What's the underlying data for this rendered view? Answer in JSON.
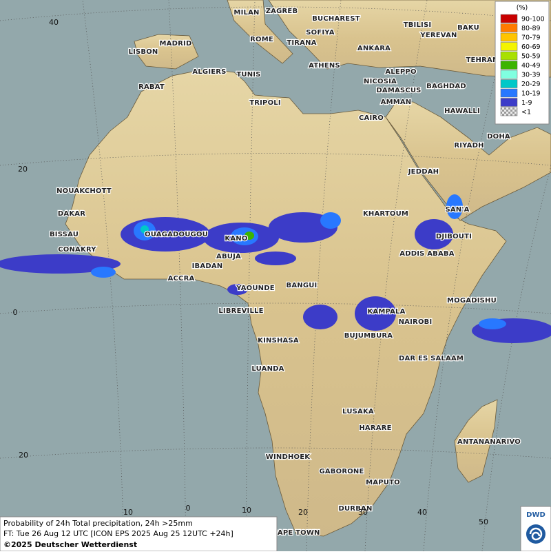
{
  "map": {
    "cities": [
      "MILAN",
      "ZAGREB",
      "BUCHAREST",
      "SOFIYA",
      "TBILISI",
      "BAKU",
      "YEREVAN",
      "MADRID",
      "ROME",
      "TIRANA",
      "ANKARA",
      "LISBON",
      "ATHENS",
      "TEHRAN",
      "ALGIERS",
      "TUNIS",
      "ALEPPO",
      "NICOSIA",
      "RABAT",
      "BAGHDAD",
      "DAMASCUS",
      "TRIPOLI",
      "AMMAN",
      "HAWALLI",
      "CAIRO",
      "DOHA",
      "RIYADH",
      "JEDDAH",
      "NOUAKCHOTT",
      "SAN'A",
      "KHARTOUM",
      "DAKAR",
      "BISSAU",
      "OUAGADOUGOU",
      "KANO",
      "DJIBOUTI",
      "CONAKRY",
      "ABUJA",
      "ADDIS ABABA",
      "IBADAN",
      "ACCRA",
      "YAOUNDE",
      "BANGUI",
      "MOGADISHU",
      "LIBREVILLE",
      "KAMPALA",
      "NAIROBI",
      "KINSHASA",
      "BUJUMBURA",
      "DAR ES SALAAM",
      "LUANDA",
      "LUSAKA",
      "HARARE",
      "ANTANANARIVO",
      "WINDHOEK",
      "GABORONE",
      "MAPUTO",
      "DURBAN",
      "CAPE TOWN"
    ],
    "grid_labels": [
      "40",
      "20",
      "0",
      "20",
      "10",
      "0",
      "10",
      "20",
      "30",
      "40",
      "50"
    ],
    "legend": {
      "title": "(%)",
      "entries": [
        {
          "label": "90-100",
          "color": "#c80000"
        },
        {
          "label": "80-89",
          "color": "#ff7a00"
        },
        {
          "label": "70-79",
          "color": "#ffc400"
        },
        {
          "label": "60-69",
          "color": "#f4f400"
        },
        {
          "label": "50-59",
          "color": "#a8e000"
        },
        {
          "label": "40-49",
          "color": "#3cb400"
        },
        {
          "label": "30-39",
          "color": "#80ffe0"
        },
        {
          "label": "20-29",
          "color": "#00c8c8"
        },
        {
          "label": "10-19",
          "color": "#2878ff"
        },
        {
          "label": "1-9",
          "color": "#3c3cc8"
        },
        {
          "label": "<1",
          "color": "#bbbbbb"
        }
      ]
    },
    "footer": [
      "Probability of 24h Total precipitation, 24h >25mm",
      "FT: Tue 26 Aug 12 UTC [ICON EPS 2025 Aug 25 12UTC +24h]",
      "©2025 Deutscher Wetterdienst"
    ],
    "logo": "DWD"
  }
}
